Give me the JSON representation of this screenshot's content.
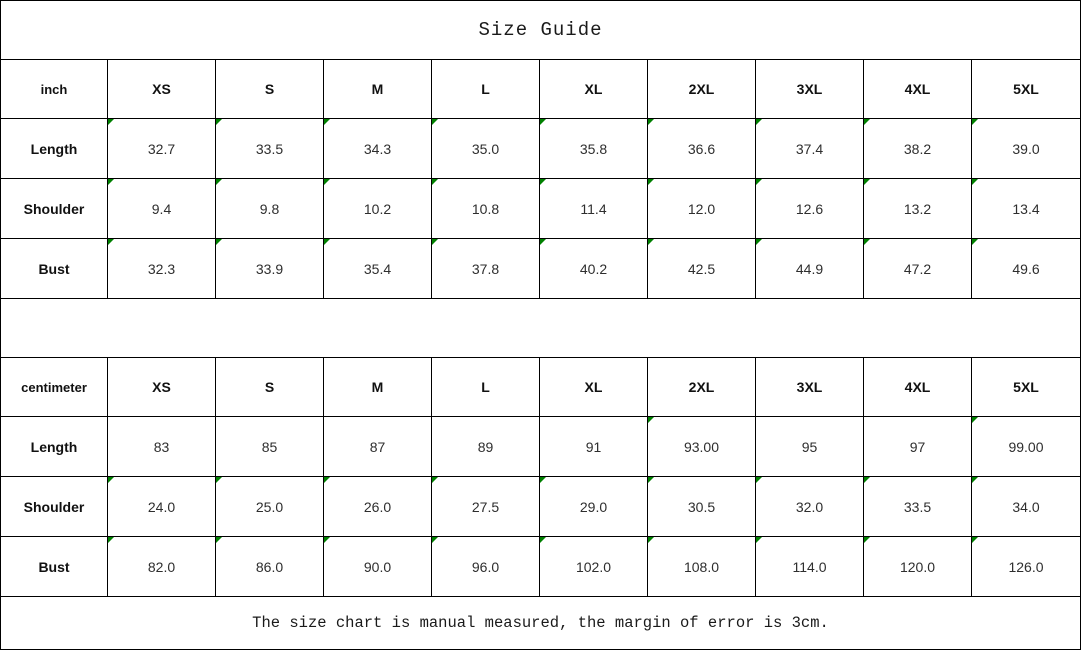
{
  "title": "Size Guide",
  "footer_note": "The size chart is manual measured, the margin of error is 3cm.",
  "colors": {
    "marker_green": "#008000",
    "border": "#000000",
    "background": "#ffffff"
  },
  "sizes": [
    "XS",
    "S",
    "M",
    "L",
    "XL",
    "2XL",
    "3XL",
    "4XL",
    "5XL"
  ],
  "tables": [
    {
      "unit_label": "inch",
      "rows": [
        {
          "label": "Length",
          "values": [
            "32.7",
            "33.5",
            "34.3",
            "35.0",
            "35.8",
            "36.6",
            "37.4",
            "38.2",
            "39.0"
          ],
          "markers": [
            true,
            true,
            true,
            true,
            true,
            true,
            true,
            true,
            true
          ]
        },
        {
          "label": "Shoulder",
          "values": [
            "9.4",
            "9.8",
            "10.2",
            "10.8",
            "11.4",
            "12.0",
            "12.6",
            "13.2",
            "13.4"
          ],
          "markers": [
            true,
            true,
            true,
            true,
            true,
            true,
            true,
            true,
            true
          ]
        },
        {
          "label": "Bust",
          "values": [
            "32.3",
            "33.9",
            "35.4",
            "37.8",
            "40.2",
            "42.5",
            "44.9",
            "47.2",
            "49.6"
          ],
          "markers": [
            true,
            true,
            true,
            true,
            true,
            true,
            true,
            true,
            true
          ]
        }
      ]
    },
    {
      "unit_label": "centimeter",
      "rows": [
        {
          "label": "Length",
          "values": [
            "83",
            "85",
            "87",
            "89",
            "91",
            "93.00",
            "95",
            "97",
            "99.00"
          ],
          "markers": [
            false,
            false,
            false,
            false,
            false,
            true,
            false,
            false,
            true
          ]
        },
        {
          "label": "Shoulder",
          "values": [
            "24.0",
            "25.0",
            "26.0",
            "27.5",
            "29.0",
            "30.5",
            "32.0",
            "33.5",
            "34.0"
          ],
          "markers": [
            true,
            true,
            true,
            true,
            true,
            true,
            true,
            true,
            true
          ]
        },
        {
          "label": "Bust",
          "values": [
            "82.0",
            "86.0",
            "90.0",
            "96.0",
            "102.0",
            "108.0",
            "114.0",
            "120.0",
            "126.0"
          ],
          "markers": [
            true,
            true,
            true,
            true,
            true,
            true,
            true,
            true,
            true
          ]
        }
      ]
    }
  ]
}
